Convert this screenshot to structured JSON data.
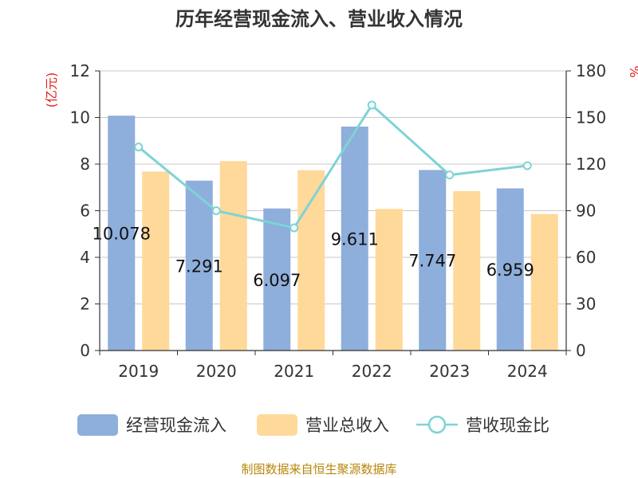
{
  "chart_data": {
    "type": "bar",
    "title": "历年经营现金流入、营业收入情况",
    "categories": [
      "2019",
      "2020",
      "2021",
      "2022",
      "2023",
      "2024"
    ],
    "series": [
      {
        "name": "经营现金流入",
        "kind": "bar",
        "axis": "left",
        "color": "#8eaedb",
        "values": [
          10.078,
          7.291,
          6.097,
          9.611,
          7.747,
          6.959
        ],
        "labels": [
          "10.078",
          "7.291",
          "6.097",
          "9.611",
          "7.747",
          "6.959"
        ]
      },
      {
        "name": "营业总收入",
        "kind": "bar",
        "axis": "left",
        "color": "#fed99a",
        "values": [
          7.68,
          8.13,
          7.74,
          6.08,
          6.84,
          5.86
        ]
      },
      {
        "name": "营收现金比",
        "kind": "line",
        "axis": "right",
        "color": "#7fd3d6",
        "values": [
          131,
          90,
          79,
          158,
          113,
          119
        ]
      }
    ],
    "y_left": {
      "unit": "(亿元)",
      "min": 0,
      "max": 12,
      "ticks": [
        0,
        2,
        4,
        6,
        8,
        10,
        12
      ]
    },
    "y_right": {
      "unit": "%",
      "min": 0,
      "max": 180,
      "ticks": [
        0,
        30,
        60,
        90,
        120,
        150,
        180
      ]
    },
    "grid": true,
    "legend": "bottom",
    "source": "制图数据来自恒生聚源数据库"
  }
}
